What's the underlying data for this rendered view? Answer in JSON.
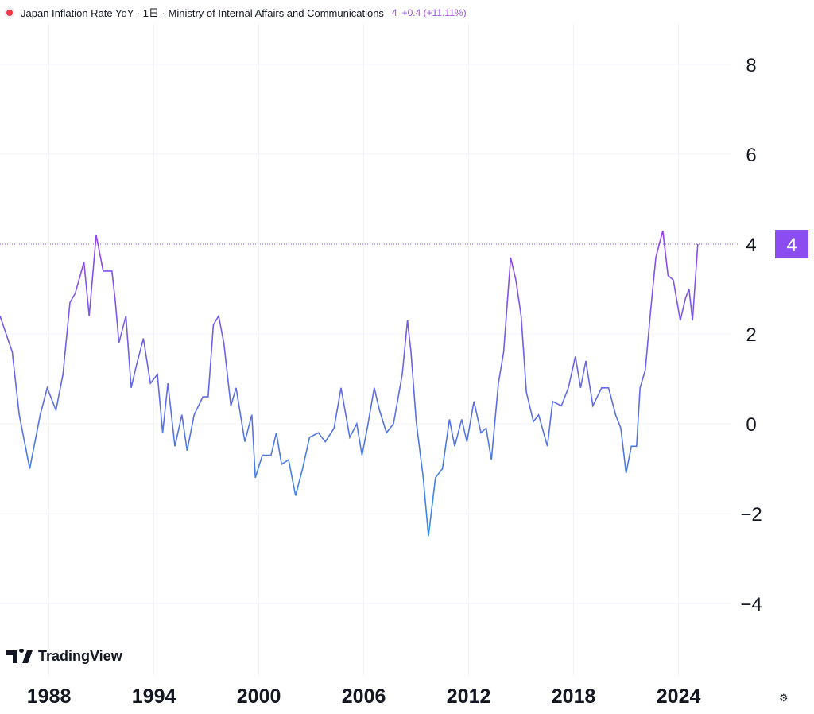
{
  "header": {
    "title": "Japan Inflation Rate YoY · 1日 · Ministry of Internal Affairs and Communications",
    "last_value": "4",
    "change": "+0.4 (+11.11%)"
  },
  "brand": "TradingView",
  "colors": {
    "line_high": "#9346ec",
    "line_low": "#2f8fe0",
    "last_value_badge": "#8b4cf0"
  },
  "chart_data": {
    "type": "line",
    "title": "Japan Inflation Rate YoY",
    "ylim": [
      -5.5,
      9
    ],
    "xlim": [
      1985.2,
      2026.9
    ],
    "yticks": [
      "8",
      "6",
      "4",
      "2",
      "0",
      "−2",
      "−4"
    ],
    "ytick_values": [
      8,
      6,
      4,
      2,
      0,
      -2,
      -4
    ],
    "xticks": [
      "1988",
      "1994",
      "2000",
      "2006",
      "2012",
      "2018",
      "2024"
    ],
    "xtick_values": [
      1988,
      1994,
      2000,
      2006,
      2012,
      2018,
      2024
    ],
    "grid": true,
    "last_value_label": "4",
    "points": [
      [
        1985.2,
        2.4
      ],
      [
        1985.9,
        1.6
      ],
      [
        1986.3,
        0.2
      ],
      [
        1986.9,
        -1.0
      ],
      [
        1987.5,
        0.2
      ],
      [
        1987.9,
        0.8
      ],
      [
        1988.4,
        0.3
      ],
      [
        1988.8,
        1.1
      ],
      [
        1989.2,
        2.7
      ],
      [
        1989.5,
        2.9
      ],
      [
        1990.0,
        3.6
      ],
      [
        1990.3,
        2.4
      ],
      [
        1990.7,
        4.2
      ],
      [
        1991.1,
        3.4
      ],
      [
        1991.6,
        3.4
      ],
      [
        1991.8,
        2.7
      ],
      [
        1992.0,
        1.8
      ],
      [
        1992.4,
        2.4
      ],
      [
        1992.7,
        0.8
      ],
      [
        1993.0,
        1.3
      ],
      [
        1993.4,
        1.9
      ],
      [
        1993.8,
        0.9
      ],
      [
        1994.2,
        1.1
      ],
      [
        1994.5,
        -0.2
      ],
      [
        1994.8,
        0.9
      ],
      [
        1995.2,
        -0.5
      ],
      [
        1995.6,
        0.2
      ],
      [
        1995.9,
        -0.6
      ],
      [
        1996.3,
        0.2
      ],
      [
        1996.8,
        0.6
      ],
      [
        1997.1,
        0.6
      ],
      [
        1997.4,
        2.2
      ],
      [
        1997.7,
        2.4
      ],
      [
        1998.0,
        1.8
      ],
      [
        1998.4,
        0.4
      ],
      [
        1998.7,
        0.8
      ],
      [
        1999.2,
        -0.4
      ],
      [
        1999.6,
        0.2
      ],
      [
        1999.8,
        -1.2
      ],
      [
        2000.2,
        -0.7
      ],
      [
        2000.7,
        -0.7
      ],
      [
        2001.0,
        -0.2
      ],
      [
        2001.3,
        -0.9
      ],
      [
        2001.7,
        -0.8
      ],
      [
        2002.1,
        -1.6
      ],
      [
        2002.5,
        -1.0
      ],
      [
        2002.9,
        -0.3
      ],
      [
        2003.4,
        -0.2
      ],
      [
        2003.8,
        -0.4
      ],
      [
        2004.3,
        -0.1
      ],
      [
        2004.7,
        0.8
      ],
      [
        2005.2,
        -0.3
      ],
      [
        2005.6,
        0.0
      ],
      [
        2005.9,
        -0.7
      ],
      [
        2006.2,
        -0.1
      ],
      [
        2006.6,
        0.8
      ],
      [
        2006.9,
        0.3
      ],
      [
        2007.3,
        -0.2
      ],
      [
        2007.7,
        0.0
      ],
      [
        2008.2,
        1.1
      ],
      [
        2008.5,
        2.3
      ],
      [
        2008.7,
        1.6
      ],
      [
        2009.0,
        0.05
      ],
      [
        2009.4,
        -1.2
      ],
      [
        2009.7,
        -2.5
      ],
      [
        2010.1,
        -1.2
      ],
      [
        2010.5,
        -1.0
      ],
      [
        2010.9,
        0.1
      ],
      [
        2011.2,
        -0.5
      ],
      [
        2011.6,
        0.1
      ],
      [
        2011.9,
        -0.4
      ],
      [
        2012.3,
        0.5
      ],
      [
        2012.7,
        -0.2
      ],
      [
        2013.0,
        -0.1
      ],
      [
        2013.3,
        -0.8
      ],
      [
        2013.7,
        0.9
      ],
      [
        2014.0,
        1.6
      ],
      [
        2014.4,
        3.7
      ],
      [
        2014.7,
        3.2
      ],
      [
        2015.0,
        2.4
      ],
      [
        2015.3,
        0.7
      ],
      [
        2015.7,
        0.05
      ],
      [
        2016.0,
        0.2
      ],
      [
        2016.5,
        -0.5
      ],
      [
        2016.8,
        0.5
      ],
      [
        2017.3,
        0.4
      ],
      [
        2017.7,
        0.8
      ],
      [
        2018.1,
        1.5
      ],
      [
        2018.4,
        0.8
      ],
      [
        2018.7,
        1.4
      ],
      [
        2019.1,
        0.4
      ],
      [
        2019.6,
        0.8
      ],
      [
        2020.0,
        0.8
      ],
      [
        2020.4,
        0.2
      ],
      [
        2020.7,
        -0.1
      ],
      [
        2021.0,
        -1.1
      ],
      [
        2021.3,
        -0.5
      ],
      [
        2021.6,
        -0.5
      ],
      [
        2021.8,
        0.8
      ],
      [
        2022.1,
        1.2
      ],
      [
        2022.4,
        2.5
      ],
      [
        2022.7,
        3.7
      ],
      [
        2023.1,
        4.3
      ],
      [
        2023.4,
        3.3
      ],
      [
        2023.7,
        3.2
      ],
      [
        2024.1,
        2.3
      ],
      [
        2024.4,
        2.8
      ],
      [
        2024.6,
        3.0
      ],
      [
        2024.8,
        2.3
      ],
      [
        2025.1,
        4.0
      ]
    ]
  }
}
